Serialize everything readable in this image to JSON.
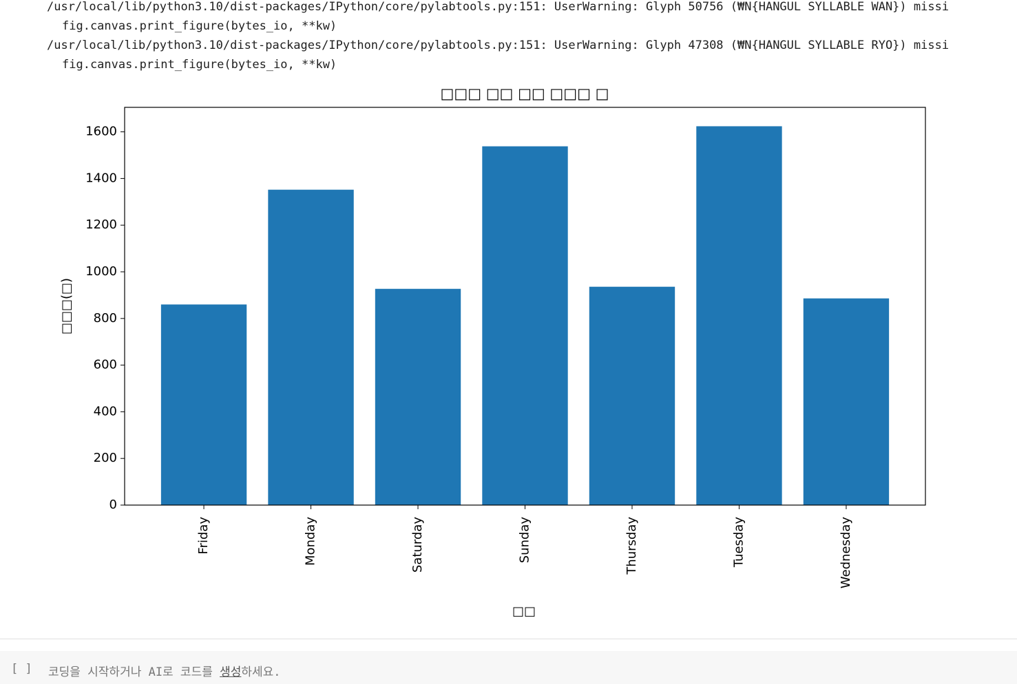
{
  "warnings": [
    "/usr/local/lib/python3.10/dist-packages/IPython/core/pylabtools.py:151: UserWarning: Glyph 50756 (₩N{HANGUL SYLLABLE WAN}) missi",
    "fig.canvas.print_figure(bytes_io, **kw)",
    "/usr/local/lib/python3.10/dist-packages/IPython/core/pylabtools.py:151: UserWarning: Glyph 47308 (₩N{HANGUL SYLLABLE RYO}) missi",
    "fig.canvas.print_figure(bytes_io, **kw)"
  ],
  "chart_data": {
    "type": "bar",
    "title": "□□□ □□ □□ □□□ □",
    "x_label": "□□",
    "y_label": "□□□(□)",
    "categories": [
      "Friday",
      "Monday",
      "Saturday",
      "Sunday",
      "Thursday",
      "Tuesday",
      "Wednesday"
    ],
    "values": [
      860,
      1352,
      927,
      1538,
      936,
      1624,
      886
    ],
    "color": "#1f77b4",
    "ylim": [
      0,
      1705
    ],
    "yticks": [
      0,
      200,
      400,
      600,
      800,
      1000,
      1200,
      1400,
      1600
    ]
  },
  "new_cell": {
    "brackets": "[ ]",
    "prompt_start": "코딩을 시작하거나 AI로 코드를 ",
    "prompt_link": "생성",
    "prompt_end": "하세요."
  }
}
